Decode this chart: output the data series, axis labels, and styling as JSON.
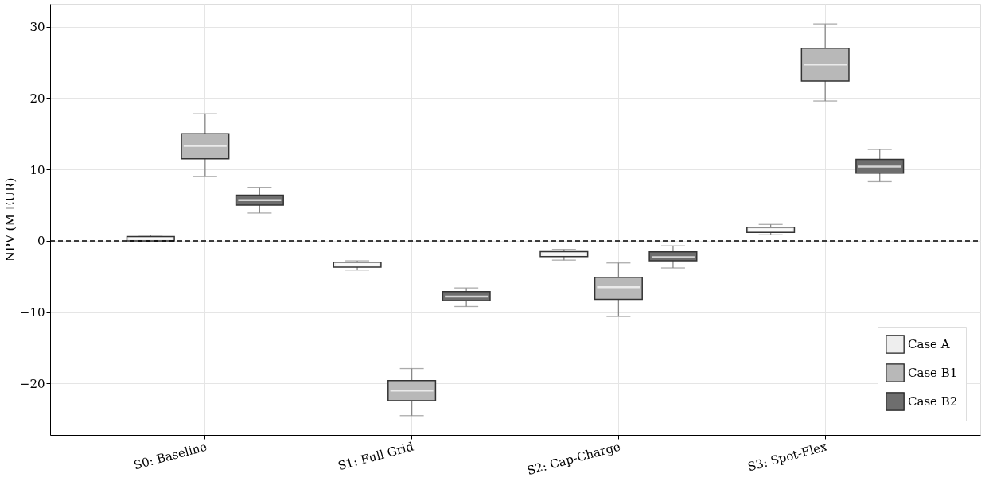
{
  "chart_data": {
    "type": "box",
    "ylabel": "NPV (M EUR)",
    "categories": [
      "S0: Baseline",
      "S1: Full Grid",
      "S2: Cap-Charge",
      "S3: Spot-Flex"
    ],
    "series": [
      {
        "name": "Case A",
        "color": "#eeeeee",
        "boxes": [
          {
            "low": -0.1,
            "q1": 0.0,
            "median": 0.3,
            "q3": 0.6,
            "high": 0.8
          },
          {
            "low": -4.1,
            "q1": -3.7,
            "median": -3.3,
            "q3": -3.0,
            "high": -2.8
          },
          {
            "low": -2.7,
            "q1": -2.2,
            "median": -1.85,
            "q3": -1.5,
            "high": -1.2
          },
          {
            "low": 0.85,
            "q1": 1.2,
            "median": 1.55,
            "q3": 1.9,
            "high": 2.3
          }
        ]
      },
      {
        "name": "Case B1",
        "color": "#b8b8b8",
        "boxes": [
          {
            "low": 9.0,
            "q1": 11.5,
            "median": 13.3,
            "q3": 15.0,
            "high": 17.8
          },
          {
            "low": -24.5,
            "q1": -22.4,
            "median": -21.0,
            "q3": -19.6,
            "high": -17.9
          },
          {
            "low": -10.6,
            "q1": -8.2,
            "median": -6.5,
            "q3": -5.1,
            "high": -3.1
          },
          {
            "low": 19.6,
            "q1": 22.4,
            "median": 24.7,
            "q3": 27.0,
            "high": 30.4
          }
        ]
      },
      {
        "name": "Case B2",
        "color": "#6e6e6e",
        "boxes": [
          {
            "low": 3.9,
            "q1": 5.0,
            "median": 5.7,
            "q3": 6.4,
            "high": 7.5
          },
          {
            "low": -9.2,
            "q1": -8.4,
            "median": -7.8,
            "q3": -7.1,
            "high": -6.6
          },
          {
            "low": -3.8,
            "q1": -2.8,
            "median": -2.3,
            "q3": -1.55,
            "high": -0.7
          },
          {
            "low": 8.3,
            "q1": 9.5,
            "median": 10.4,
            "q3": 11.4,
            "high": 12.8
          }
        ]
      }
    ],
    "ylim": [
      -27.2,
      33.2
    ],
    "yticks": [
      -20,
      -10,
      0,
      10,
      20,
      30
    ],
    "ref_lines": [
      {
        "axis": "y",
        "value": 0,
        "color": "#000000",
        "line_style": "dashed"
      }
    ],
    "grid": true,
    "legend": "bottom right"
  }
}
